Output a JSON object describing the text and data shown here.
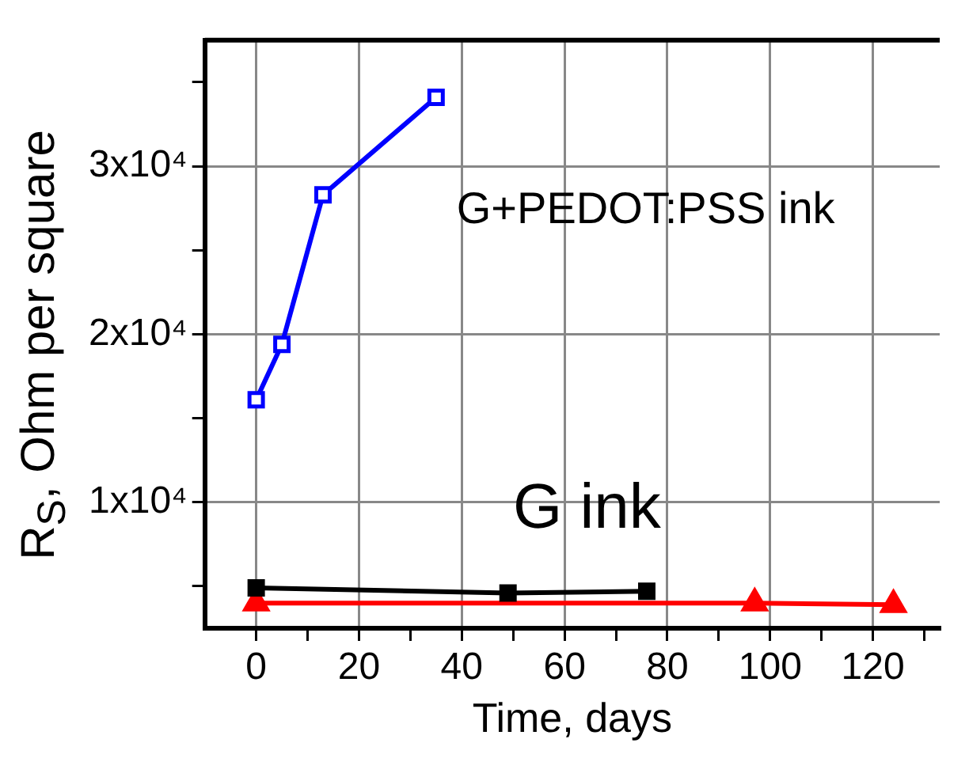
{
  "chart_data": {
    "type": "line",
    "xlabel": "Time, days",
    "ylabel": "R$_{S}$, Ohm per square",
    "xlim": [
      -10,
      133
    ],
    "ylim": [
      2500,
      37500
    ],
    "xticks": [
      0,
      20,
      40,
      60,
      80,
      100,
      120,
      {
        "value": 10,
        "label": null
      },
      {
        "value": 30,
        "label": null
      },
      {
        "value": 50,
        "label": null
      },
      {
        "value": 70,
        "label": null
      },
      {
        "value": 90,
        "label": null
      },
      {
        "value": 110,
        "label": null
      },
      {
        "value": 130,
        "label": null
      }
    ],
    "yticks": [
      {
        "value": 10000,
        "label": "1x10⁴"
      },
      {
        "value": 20000,
        "label": "2x10⁴"
      },
      {
        "value": 30000,
        "label": "3x10⁴"
      },
      {
        "value": 5000,
        "label": null
      },
      {
        "value": 15000,
        "label": null
      },
      {
        "value": 25000,
        "label": null
      },
      {
        "value": 35000,
        "label": null
      }
    ],
    "grid": true,
    "legend": false,
    "annotations": [
      "G+PEDOT:PSS ink",
      "G ink"
    ],
    "series": [
      {
        "color": "#0000ff",
        "marker": "square",
        "x": [
          0,
          5,
          13,
          35
        ],
        "values": [
          16100,
          19400,
          28300,
          34100
        ]
      },
      {
        "color": "#000000",
        "marker": "square",
        "x": [
          0,
          49,
          76
        ],
        "values": [
          4900,
          4600,
          4700
        ]
      },
      {
        "color": "#ff0000",
        "marker": "triangle",
        "x": [
          0,
          97,
          124
        ],
        "values": [
          4000,
          4000,
          3900
        ]
      }
    ]
  }
}
